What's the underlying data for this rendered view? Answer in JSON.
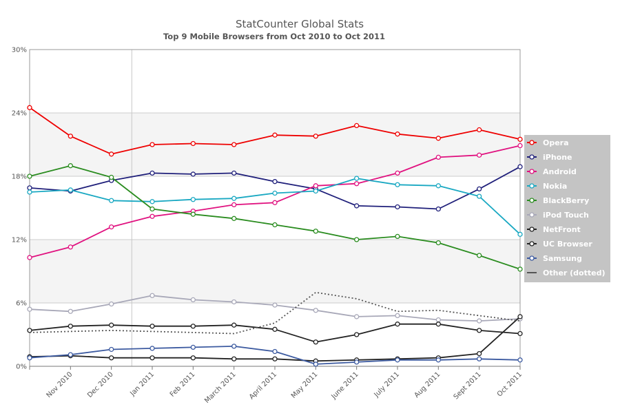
{
  "chart_data": {
    "type": "line",
    "title": "StatCounter Global Stats",
    "subtitle": "Top 9 Mobile Browsers from Oct 2010 to Oct 2011",
    "xlabel": "",
    "ylabel": "",
    "ylim": [
      0,
      30
    ],
    "y_ticks": [
      0,
      6,
      12,
      18,
      24,
      30
    ],
    "y_tick_labels": [
      "0%",
      "6%",
      "12%",
      "18%",
      "24%",
      "30%"
    ],
    "x": [
      "Oct 2010",
      "Nov 2010",
      "Dec 2010",
      "Jan 2011",
      "Feb 2011",
      "March 2011",
      "April 2011",
      "May 2011",
      "June 2011",
      "July 2011",
      "Aug 2011",
      "Sept 2011",
      "Oct 2011"
    ],
    "x_tick_labels": [
      "",
      "Nov 2010",
      "Dec 2010",
      "Jan 2011",
      "Feb 2011",
      "March 2011",
      "April 2011",
      "May 2011",
      "June 2011",
      "July 2011",
      "Aug 2011",
      "Sept 2011",
      "Oct 2011"
    ],
    "grid": true,
    "legend_position": "right",
    "series": [
      {
        "name": "Opera",
        "color": "#ee0000",
        "dotted": false,
        "values": [
          24.5,
          21.8,
          20.1,
          21.0,
          21.1,
          21.0,
          21.9,
          21.8,
          22.8,
          22.0,
          21.6,
          22.4,
          21.5
        ]
      },
      {
        "name": "iPhone",
        "color": "#1f1f7a",
        "dotted": false,
        "values": [
          16.9,
          16.6,
          17.6,
          18.3,
          18.2,
          18.3,
          17.5,
          16.8,
          15.2,
          15.1,
          14.9,
          16.8,
          18.9
        ]
      },
      {
        "name": "Android",
        "color": "#e0117f",
        "dotted": false,
        "values": [
          10.3,
          11.3,
          13.2,
          14.2,
          14.7,
          15.3,
          15.5,
          17.1,
          17.3,
          18.3,
          19.8,
          20.0,
          20.9
        ]
      },
      {
        "name": "Nokia",
        "color": "#19a8c2",
        "dotted": false,
        "values": [
          16.5,
          16.7,
          15.7,
          15.6,
          15.8,
          15.9,
          16.4,
          16.6,
          17.8,
          17.2,
          17.1,
          16.1,
          12.5
        ]
      },
      {
        "name": "BlackBerry",
        "color": "#2a8c1f",
        "dotted": false,
        "values": [
          18.0,
          19.0,
          17.9,
          14.9,
          14.4,
          14.0,
          13.4,
          12.8,
          12.0,
          12.3,
          11.7,
          10.5,
          9.2
        ]
      },
      {
        "name": "iPod Touch",
        "color": "#a8a8b8",
        "dotted": false,
        "values": [
          5.4,
          5.2,
          5.9,
          6.7,
          6.3,
          6.1,
          5.8,
          5.3,
          4.7,
          4.8,
          4.4,
          4.3,
          4.5
        ]
      },
      {
        "name": "NetFront",
        "color": "#222222",
        "dotted": false,
        "values": [
          3.4,
          3.8,
          3.9,
          3.8,
          3.8,
          3.9,
          3.5,
          2.3,
          3.0,
          4.0,
          4.0,
          3.4,
          3.1
        ]
      },
      {
        "name": "UC Browser",
        "color": "#222222",
        "dotted": false,
        "values": [
          0.9,
          1.0,
          0.8,
          0.8,
          0.8,
          0.7,
          0.7,
          0.5,
          0.6,
          0.7,
          0.8,
          1.2,
          4.7
        ]
      },
      {
        "name": "Samsung",
        "color": "#3c5aa0",
        "dotted": false,
        "values": [
          0.8,
          1.1,
          1.6,
          1.7,
          1.8,
          1.9,
          1.4,
          0.2,
          0.4,
          0.6,
          0.6,
          0.7,
          0.6
        ]
      },
      {
        "name": "Other (dotted)",
        "color": "#555555",
        "dotted": true,
        "values": [
          3.2,
          3.3,
          3.4,
          3.3,
          3.2,
          3.1,
          4.1,
          7.0,
          6.4,
          5.2,
          5.3,
          4.8,
          4.3
        ]
      }
    ]
  }
}
